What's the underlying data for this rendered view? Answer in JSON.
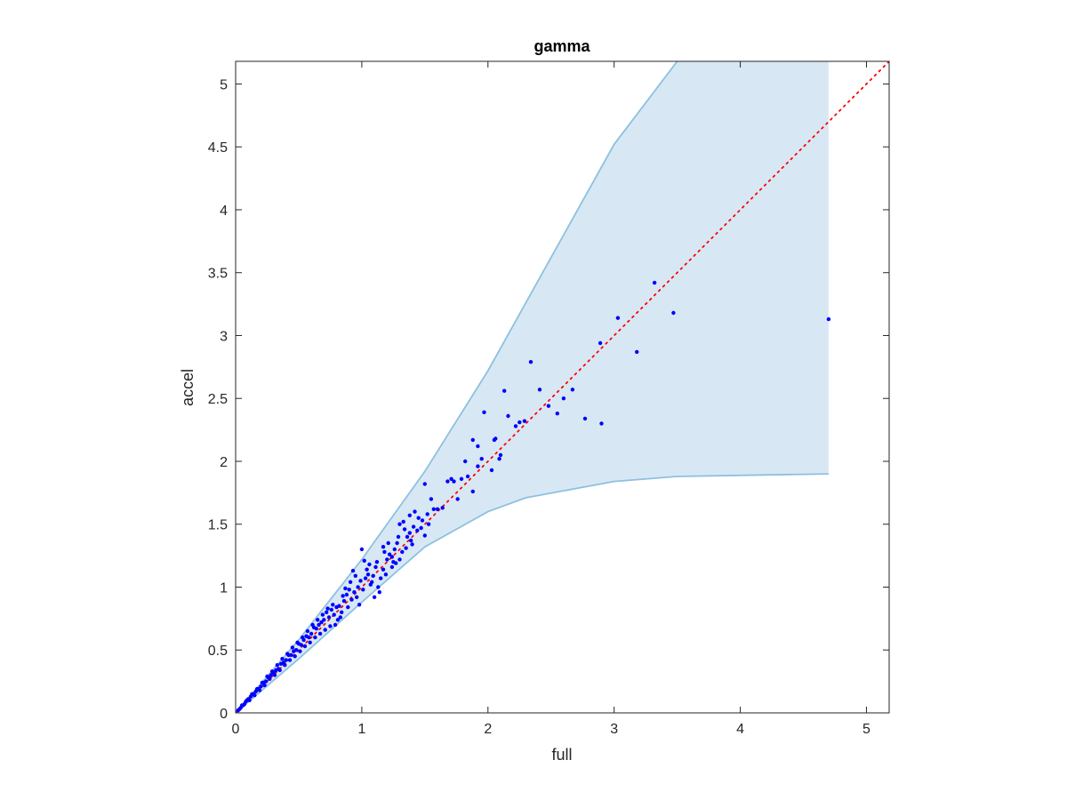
{
  "chart_data": {
    "type": "scatter",
    "title": "gamma",
    "xlabel": "full",
    "ylabel": "accel",
    "xlim": [
      0,
      5.18
    ],
    "ylim": [
      0,
      5.18
    ],
    "xticks": [
      0,
      1,
      2,
      3,
      4,
      5
    ],
    "xtick_labels": [
      "0",
      "1",
      "2",
      "3",
      "4",
      "5"
    ],
    "yticks": [
      0,
      0.5,
      1,
      1.5,
      2,
      2.5,
      3,
      3.5,
      4,
      4.5,
      5
    ],
    "ytick_labels": [
      "0",
      "0.5",
      "1",
      "1.5",
      "2",
      "2.5",
      "3",
      "3.5",
      "4",
      "4.5",
      "5"
    ],
    "grid": false,
    "colors": {
      "points": "#0000ff",
      "band_fill": "#d7e8f4",
      "band_edge": "#8ec0e0",
      "reference": "#ff0000",
      "axes": "#262626"
    },
    "band": {
      "upper": [
        [
          0,
          0
        ],
        [
          0.5,
          0.58
        ],
        [
          1,
          1.22
        ],
        [
          1.5,
          1.92
        ],
        [
          2,
          2.72
        ],
        [
          2.5,
          3.62
        ],
        [
          3,
          4.52
        ],
        [
          3.5,
          5.18
        ]
      ],
      "right_edge_x": 4.7,
      "lower": [
        [
          0,
          0
        ],
        [
          0.5,
          0.43
        ],
        [
          1,
          0.88
        ],
        [
          1.5,
          1.32
        ],
        [
          2,
          1.6
        ],
        [
          2.3,
          1.71
        ],
        [
          3,
          1.84
        ],
        [
          3.5,
          1.88
        ],
        [
          4.7,
          1.9
        ]
      ]
    },
    "reference_line": {
      "style": "dotted",
      "from": [
        0,
        0
      ],
      "to": [
        5.18,
        5.18
      ]
    },
    "points": [
      [
        1.97,
        2.39
      ],
      [
        2.13,
        2.56
      ],
      [
        2.34,
        2.79
      ],
      [
        2.41,
        2.57
      ],
      [
        2.48,
        2.44
      ],
      [
        2.55,
        2.38
      ],
      [
        2.6,
        2.5
      ],
      [
        2.67,
        2.57
      ],
      [
        2.77,
        2.34
      ],
      [
        2.9,
        2.3
      ],
      [
        2.89,
        2.94
      ],
      [
        3.03,
        3.14
      ],
      [
        3.18,
        2.87
      ],
      [
        3.32,
        3.42
      ],
      [
        3.47,
        3.18
      ],
      [
        4.7,
        3.13
      ],
      [
        1.88,
        2.17
      ],
      [
        1.92,
        2.12
      ],
      [
        1.95,
        2.02
      ],
      [
        2.05,
        2.17
      ],
      [
        2.06,
        2.18
      ],
      [
        2.09,
        2.02
      ],
      [
        2.1,
        2.05
      ],
      [
        2.16,
        2.36
      ],
      [
        2.22,
        2.28
      ],
      [
        2.25,
        2.31
      ],
      [
        2.29,
        2.32
      ],
      [
        2.03,
        1.93
      ],
      [
        1.5,
        1.82
      ],
      [
        1.55,
        1.7
      ],
      [
        1.57,
        1.62
      ],
      [
        1.6,
        1.62
      ],
      [
        1.64,
        1.63
      ],
      [
        1.68,
        1.84
      ],
      [
        1.71,
        1.86
      ],
      [
        1.73,
        1.84
      ],
      [
        1.76,
        1.7
      ],
      [
        1.79,
        1.86
      ],
      [
        1.82,
        2.0
      ],
      [
        1.84,
        1.88
      ],
      [
        1.88,
        1.76
      ],
      [
        1.92,
        1.96
      ],
      [
        1.3,
        1.5
      ],
      [
        1.33,
        1.52
      ],
      [
        1.36,
        1.4
      ],
      [
        1.38,
        1.43
      ],
      [
        1.4,
        1.34
      ],
      [
        1.42,
        1.6
      ],
      [
        1.45,
        1.55
      ],
      [
        1.47,
        1.47
      ],
      [
        1.5,
        1.41
      ],
      [
        1.53,
        1.5
      ],
      [
        1.38,
        1.57
      ],
      [
        1.2,
        1.22
      ],
      [
        1.22,
        1.26
      ],
      [
        1.24,
        1.24
      ],
      [
        1.26,
        1.3
      ],
      [
        1.28,
        1.35
      ],
      [
        1.3,
        1.22
      ],
      [
        1.32,
        1.28
      ],
      [
        1.24,
        1.16
      ],
      [
        1.27,
        1.19
      ],
      [
        1.17,
        1.32
      ],
      [
        1.0,
        1.3
      ],
      [
        0.95,
        1.09
      ],
      [
        0.97,
        1.0
      ],
      [
        0.99,
        1.05
      ],
      [
        1.01,
        0.98
      ],
      [
        1.03,
        1.07
      ],
      [
        1.05,
        1.1
      ],
      [
        1.07,
        1.02
      ],
      [
        1.09,
        1.09
      ],
      [
        1.11,
        1.16
      ],
      [
        1.13,
        1.0
      ],
      [
        1.15,
        1.07
      ],
      [
        1.17,
        1.14
      ],
      [
        1.19,
        1.1
      ],
      [
        1.02,
        1.21
      ],
      [
        1.06,
        1.18
      ],
      [
        1.14,
        0.96
      ],
      [
        1.1,
        0.92
      ],
      [
        0.88,
        0.94
      ],
      [
        0.9,
        0.98
      ],
      [
        0.92,
        0.9
      ],
      [
        0.94,
        0.96
      ],
      [
        0.96,
        0.92
      ],
      [
        0.98,
        0.86
      ],
      [
        0.86,
        0.89
      ],
      [
        0.84,
        0.8
      ],
      [
        0.82,
        0.85
      ],
      [
        0.8,
        0.84
      ],
      [
        0.78,
        0.78
      ],
      [
        0.76,
        0.82
      ],
      [
        0.74,
        0.76
      ],
      [
        0.72,
        0.8
      ],
      [
        0.7,
        0.74
      ],
      [
        0.68,
        0.72
      ],
      [
        0.66,
        0.7
      ],
      [
        0.64,
        0.67
      ],
      [
        0.62,
        0.68
      ],
      [
        0.6,
        0.63
      ],
      [
        0.58,
        0.6
      ],
      [
        0.56,
        0.61
      ],
      [
        0.54,
        0.58
      ],
      [
        0.52,
        0.54
      ],
      [
        0.5,
        0.55
      ],
      [
        0.48,
        0.5
      ],
      [
        0.46,
        0.49
      ],
      [
        0.44,
        0.46
      ],
      [
        0.42,
        0.46
      ],
      [
        0.4,
        0.42
      ],
      [
        0.38,
        0.4
      ],
      [
        0.36,
        0.39
      ],
      [
        0.34,
        0.35
      ],
      [
        0.32,
        0.34
      ],
      [
        0.3,
        0.32
      ],
      [
        0.28,
        0.3
      ],
      [
        0.26,
        0.28
      ],
      [
        0.24,
        0.25
      ],
      [
        0.22,
        0.24
      ],
      [
        0.2,
        0.21
      ],
      [
        0.18,
        0.19
      ],
      [
        0.16,
        0.17
      ],
      [
        0.14,
        0.15
      ],
      [
        0.12,
        0.13
      ],
      [
        0.1,
        0.11
      ],
      [
        0.08,
        0.09
      ],
      [
        0.06,
        0.06
      ],
      [
        0.04,
        0.04
      ],
      [
        0.02,
        0.02
      ],
      [
        0.83,
        0.76
      ],
      [
        0.79,
        0.7
      ],
      [
        0.75,
        0.69
      ],
      [
        0.71,
        0.66
      ],
      [
        0.67,
        0.63
      ],
      [
        0.63,
        0.6
      ],
      [
        0.59,
        0.56
      ],
      [
        0.55,
        0.53
      ],
      [
        0.51,
        0.49
      ],
      [
        0.47,
        0.45
      ],
      [
        0.43,
        0.42
      ],
      [
        0.39,
        0.38
      ],
      [
        0.35,
        0.34
      ],
      [
        0.31,
        0.3
      ],
      [
        0.27,
        0.27
      ],
      [
        0.23,
        0.22
      ],
      [
        0.19,
        0.18
      ],
      [
        0.15,
        0.14
      ],
      [
        0.11,
        0.1
      ],
      [
        0.07,
        0.07
      ],
      [
        0.77,
        0.86
      ],
      [
        0.73,
        0.83
      ],
      [
        0.69,
        0.78
      ],
      [
        0.65,
        0.74
      ],
      [
        0.61,
        0.7
      ],
      [
        0.57,
        0.65
      ],
      [
        0.53,
        0.6
      ],
      [
        0.49,
        0.56
      ],
      [
        0.45,
        0.52
      ],
      [
        0.41,
        0.47
      ],
      [
        0.37,
        0.43
      ],
      [
        0.33,
        0.38
      ],
      [
        0.29,
        0.33
      ],
      [
        0.25,
        0.29
      ],
      [
        0.21,
        0.24
      ],
      [
        0.17,
        0.19
      ],
      [
        0.13,
        0.15
      ],
      [
        0.09,
        0.1
      ],
      [
        0.05,
        0.06
      ],
      [
        0.03,
        0.03
      ],
      [
        0.91,
        1.04
      ],
      [
        0.93,
        1.13
      ],
      [
        0.87,
        0.99
      ],
      [
        0.85,
        0.93
      ],
      [
        1.12,
        1.2
      ],
      [
        1.18,
        1.28
      ],
      [
        1.21,
        1.35
      ],
      [
        1.25,
        1.2
      ],
      [
        1.29,
        1.4
      ],
      [
        1.34,
        1.46
      ],
      [
        1.41,
        1.48
      ],
      [
        1.44,
        1.45
      ],
      [
        1.48,
        1.53
      ],
      [
        1.52,
        1.58
      ],
      [
        1.35,
        1.31
      ],
      [
        1.39,
        1.37
      ],
      [
        1.08,
        1.04
      ],
      [
        1.04,
        1.14
      ],
      [
        0.89,
        0.84
      ],
      [
        0.81,
        0.74
      ]
    ]
  }
}
